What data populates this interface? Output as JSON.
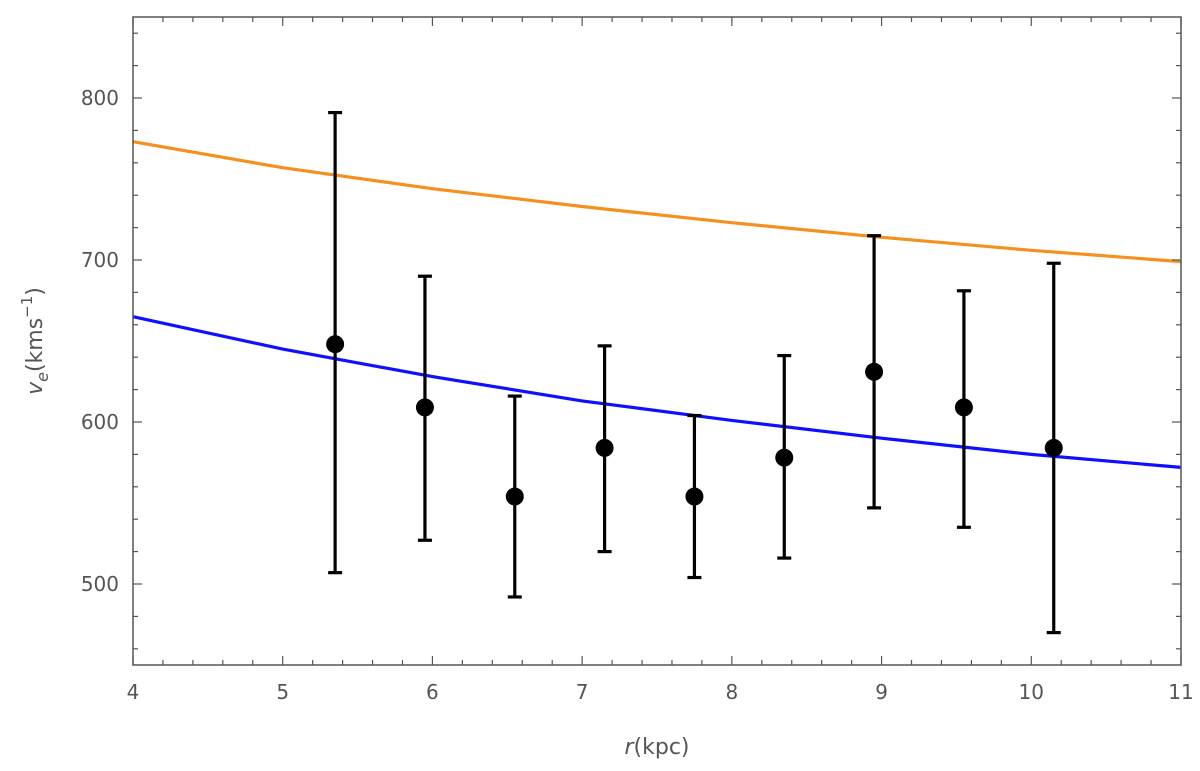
{
  "chart_data": {
    "type": "scatter",
    "title": "",
    "xlabel": {
      "var": "r",
      "unit": "(kpc)"
    },
    "ylabel": {
      "var": "v",
      "sub": "e",
      "unit_prefix": "(kms",
      "sup": "−1",
      "unit_suffix": ")"
    },
    "xlim": [
      4,
      11
    ],
    "ylim": [
      450,
      850
    ],
    "xticks": [
      4,
      5,
      6,
      7,
      8,
      9,
      10,
      11
    ],
    "yticks": [
      500,
      600,
      700,
      800
    ],
    "grid": false,
    "legend": "none",
    "points": [
      {
        "x": 5.35,
        "y": 648,
        "lo": 507,
        "hi": 791
      },
      {
        "x": 5.95,
        "y": 609,
        "lo": 527,
        "hi": 690
      },
      {
        "x": 6.55,
        "y": 554,
        "lo": 492,
        "hi": 616
      },
      {
        "x": 7.15,
        "y": 584,
        "lo": 520,
        "hi": 647
      },
      {
        "x": 7.75,
        "y": 554,
        "lo": 504,
        "hi": 604
      },
      {
        "x": 8.35,
        "y": 578,
        "lo": 516,
        "hi": 641
      },
      {
        "x": 8.95,
        "y": 631,
        "lo": 547,
        "hi": 715
      },
      {
        "x": 9.55,
        "y": 609,
        "lo": 535,
        "hi": 681
      },
      {
        "x": 10.15,
        "y": 584,
        "lo": 470,
        "hi": 698
      }
    ],
    "curves": [
      {
        "color": "#f5901e",
        "x": [
          4,
          5,
          6,
          7,
          8,
          9,
          10,
          11
        ],
        "y": [
          773,
          757,
          744,
          733,
          723,
          714,
          706,
          699
        ]
      },
      {
        "color": "#1010ff",
        "x": [
          4,
          5,
          6,
          7,
          8,
          9,
          10,
          11
        ],
        "y": [
          665,
          645,
          628,
          613,
          601,
          590,
          580,
          572
        ]
      }
    ],
    "point_color": "#000000"
  }
}
